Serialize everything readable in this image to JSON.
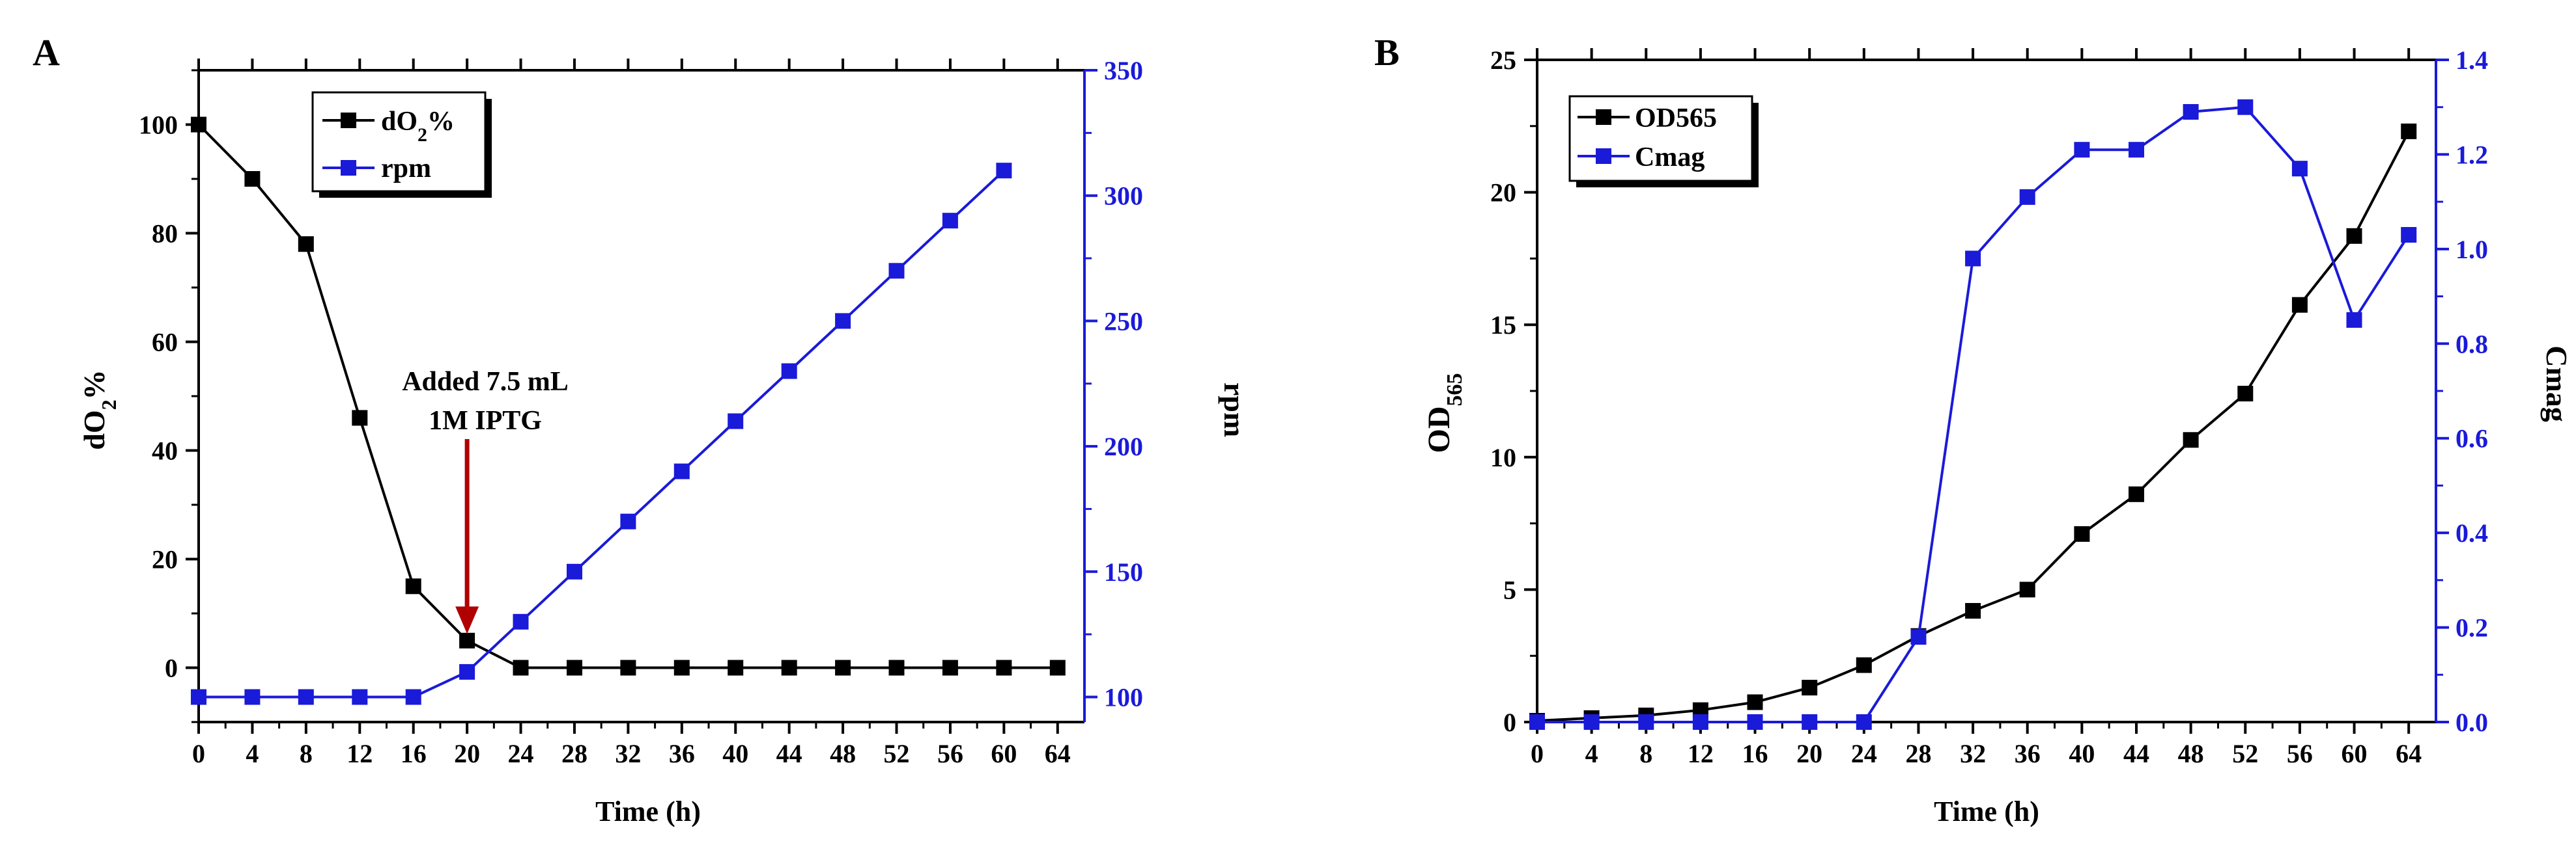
{
  "panels": {
    "A": {
      "label": "A"
    },
    "B": {
      "label": "B"
    }
  },
  "colors": {
    "black": "#000000",
    "blue": "#1a1ad9",
    "arrow": "#b00000"
  },
  "chart_data": [
    {
      "panel": "A",
      "type": "line",
      "title": "",
      "xlabel": "Time (h)",
      "x_ticks": [
        0,
        4,
        8,
        12,
        16,
        20,
        24,
        28,
        32,
        36,
        40,
        44,
        48,
        52,
        56,
        60,
        64
      ],
      "xlim": [
        0,
        66
      ],
      "y_left": {
        "label_main": "dO",
        "label_sub": "2",
        "label_tail": "%",
        "lim": [
          -10,
          110
        ],
        "ticks": [
          0,
          20,
          40,
          60,
          80,
          100
        ]
      },
      "y_right": {
        "label": "rpm",
        "lim": [
          90,
          350
        ],
        "ticks": [
          100,
          150,
          200,
          250,
          300,
          350
        ]
      },
      "series": [
        {
          "name_main": "dO",
          "name_sub": "2",
          "name_tail": "%",
          "axis": "left",
          "color": "#000000",
          "x": [
            0,
            4,
            8,
            12,
            16,
            20,
            24,
            28,
            32,
            36,
            40,
            44,
            48,
            52,
            56,
            60,
            64
          ],
          "y": [
            100,
            90,
            78,
            46,
            15,
            5,
            0,
            0,
            0,
            0,
            0,
            0,
            0,
            0,
            0,
            0,
            0
          ]
        },
        {
          "name": "rpm",
          "axis": "right",
          "color": "#1a1ad9",
          "x": [
            0,
            4,
            8,
            12,
            16,
            20,
            24,
            28,
            32,
            36,
            40,
            44,
            48,
            52,
            56,
            60
          ],
          "y": [
            100,
            100,
            100,
            100,
            100,
            110,
            130,
            150,
            170,
            190,
            210,
            230,
            250,
            270,
            290,
            310
          ]
        }
      ],
      "annotation": {
        "line1": "Added 7.5 mL",
        "line2": "1M IPTG",
        "arrow_to_x": 20,
        "arrow_to_y": 6
      },
      "legend_position": "top-left"
    },
    {
      "panel": "B",
      "type": "line",
      "title": "",
      "xlabel": "Time (h)",
      "x_ticks": [
        0,
        4,
        8,
        12,
        16,
        20,
        24,
        28,
        32,
        36,
        40,
        44,
        48,
        52,
        56,
        60,
        64
      ],
      "xlim": [
        0,
        66
      ],
      "y_left": {
        "label_main": "OD",
        "label_sub": "565",
        "lim": [
          0,
          25
        ],
        "ticks": [
          0,
          5,
          10,
          15,
          20,
          25
        ]
      },
      "y_right": {
        "label": "Cmag",
        "lim": [
          0,
          1.4
        ],
        "ticks": [
          "0.0",
          "0.2",
          "0.4",
          "0.6",
          "0.8",
          "1.0",
          "1.2",
          "1.4"
        ]
      },
      "series": [
        {
          "name": "OD565",
          "axis": "left",
          "color": "#000000",
          "x": [
            0,
            4,
            8,
            12,
            16,
            20,
            24,
            28,
            32,
            36,
            40,
            44,
            48,
            52,
            56,
            60,
            64
          ],
          "y": [
            0.05,
            0.15,
            0.25,
            0.45,
            0.75,
            1.3,
            2.15,
            3.25,
            4.2,
            5.0,
            7.1,
            8.6,
            10.65,
            12.4,
            15.75,
            18.35,
            22.3
          ]
        },
        {
          "name": "Cmag",
          "axis": "right",
          "color": "#1a1ad9",
          "x": [
            0,
            4,
            8,
            12,
            16,
            20,
            24,
            28,
            32,
            36,
            40,
            44,
            48,
            52,
            56,
            60,
            64
          ],
          "y": [
            0,
            0,
            0,
            0,
            0,
            0,
            0,
            0.18,
            0.98,
            1.11,
            1.21,
            1.21,
            1.29,
            1.3,
            1.17,
            0.85,
            1.03
          ]
        }
      ],
      "legend_position": "top-left"
    }
  ]
}
